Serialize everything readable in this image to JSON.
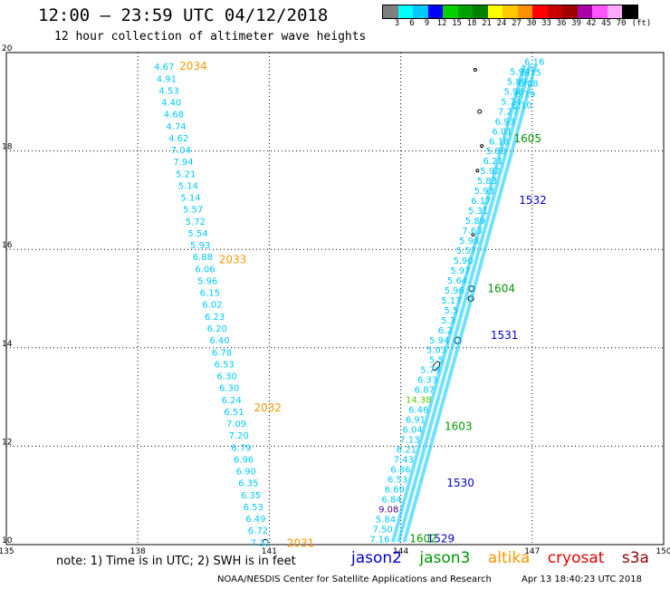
{
  "header": {
    "title": "12:00 – 23:59 UTC 04/12/2018",
    "subtitle": "12 hour collection of altimeter wave heights"
  },
  "colorbar": {
    "unit": "(ft)",
    "labels": [
      "3",
      "6",
      "9",
      "12",
      "15",
      "18",
      "21",
      "24",
      "27",
      "30",
      "33",
      "36",
      "39",
      "42",
      "45",
      "70"
    ],
    "colors": [
      "#7f7f7f",
      "#00ffff",
      "#00c8ff",
      "#0000ff",
      "#00d200",
      "#00a000",
      "#008200",
      "#ffff00",
      "#ffc800",
      "#ff9100",
      "#ff0000",
      "#c80000",
      "#a00000",
      "#aa00aa",
      "#ff55ff",
      "#ffaaff",
      "#000000"
    ]
  },
  "axes": {
    "lon_ticks": [
      "135",
      "138",
      "141",
      "144",
      "147",
      "150"
    ],
    "lat_ticks": [
      "10",
      "12",
      "14",
      "16",
      "18",
      "20"
    ],
    "lon_range": [
      135,
      150
    ],
    "lat_range": [
      10,
      20
    ]
  },
  "colors": {
    "swh": "#00c8ff",
    "jason2": "#0000c8",
    "jason3": "#009600",
    "altika": "#ff9600",
    "cryosat": "#e60000",
    "s3a": "#960000"
  },
  "legend": {
    "jason2": "jason2",
    "jason3": "jason3",
    "altika": "altika",
    "cryosat": "cryosat",
    "s3a": "s3a"
  },
  "note": "note: 1) Time is in UTC; 2) SWH is in feet",
  "footer": {
    "source": "NOAA/NESDIS Center for Satellite Applications and Research",
    "date": "Apr 13 18:40:23 UTC 2018"
  },
  "tracks": {
    "altika_values": [
      "4.67",
      "4.91",
      "4.53",
      "4.40",
      "4.68",
      "4.74",
      "4.62",
      "7.04",
      "7.94",
      "5.21",
      "5.14",
      "5.14",
      "5.57",
      "5.72",
      "5.54",
      "5.93",
      "6.88",
      "6.06",
      "5.96",
      "6.15",
      "6.02",
      "6.23",
      "6.20",
      "6.40",
      "6.78",
      "6.53",
      "6.30",
      "6.30",
      "6.24",
      "6.51",
      "7.09",
      "7.20",
      "6.79",
      "6.96",
      "6.90",
      "6.35",
      "6.35",
      "6.53",
      "6.49",
      "6.72",
      "7.31"
    ],
    "altika_times": [
      {
        "label": "2034",
        "lon": 138.95,
        "lat": 19.72
      },
      {
        "label": "2033",
        "lon": 139.85,
        "lat": 15.79
      },
      {
        "label": "2032",
        "lon": 140.65,
        "lat": 12.78
      },
      {
        "label": "2031",
        "lon": 141.4,
        "lat": 10.03
      }
    ],
    "jason_values": [
      "5.94",
      "5.89",
      "5.98",
      "5.74",
      "7.27",
      "6.93",
      "6.01",
      "6.18",
      "5.80",
      "6.21",
      "5.92",
      "5.83",
      "5.93",
      "6.17",
      "5.31",
      "5.89",
      "7.63",
      "5.98",
      "5.57",
      "5.90",
      "5.97",
      "5.64",
      "5.96",
      "5.17",
      "5.5",
      "5.3",
      "6.2",
      "5.94",
      "5.03",
      "5.5",
      "5.79",
      "6.33",
      "6.87",
      "14.38",
      "6.46",
      "6.91",
      "6.04",
      "7.13",
      "6.21",
      "7.43",
      "6.86",
      "6.53",
      "6.69",
      "6.84",
      "9.08",
      "5.84",
      "7.50",
      "7.16"
    ],
    "jason_inner_values": [
      "6.16",
      "5.75",
      "6.08",
      "6.79",
      "6.10"
    ],
    "jason2_times": [
      {
        "label": "1532",
        "lon": 146.7,
        "lat": 17.0
      },
      {
        "label": "1531",
        "lon": 146.05,
        "lat": 14.25
      },
      {
        "label": "1530",
        "lon": 145.05,
        "lat": 11.25
      },
      {
        "label": "1529",
        "lon": 144.6,
        "lat": 10.12
      }
    ],
    "jason3_times": [
      {
        "label": "1605",
        "lon": 146.58,
        "lat": 18.25
      },
      {
        "label": "1604",
        "lon": 145.98,
        "lat": 15.2
      },
      {
        "label": "1603",
        "lon": 145.0,
        "lat": 12.4
      },
      {
        "label": "1602",
        "lon": 144.2,
        "lat": 10.12
      }
    ]
  }
}
